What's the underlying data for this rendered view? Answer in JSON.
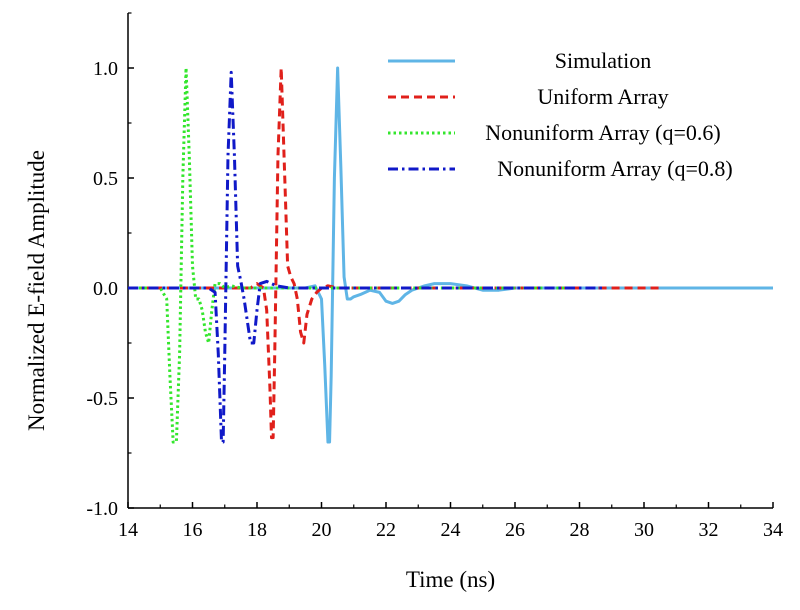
{
  "chart_data": {
    "type": "line",
    "title": "",
    "xlabel": "Time (ns)",
    "ylabel": "Normalized E-field Amplitude",
    "xlim": [
      14,
      34
    ],
    "ylim": [
      -1.0,
      1.25
    ],
    "xticks": [
      14,
      16,
      18,
      20,
      22,
      24,
      26,
      28,
      30,
      32,
      34
    ],
    "yticks": [
      -1.0,
      -0.5,
      0.0,
      0.5,
      1.0
    ],
    "xtick_labels": [
      "14",
      "16",
      "18",
      "20",
      "22",
      "24",
      "26",
      "28",
      "30",
      "32",
      "34"
    ],
    "ytick_labels": [
      "-1.0",
      "-0.5",
      "0.0",
      "0.5",
      "1.0"
    ],
    "grid": false,
    "legend_position": "top-right",
    "series": [
      {
        "name": "Simulation",
        "color": "#5fb5e6",
        "dash": "solid",
        "x": [
          14,
          19.5,
          19.8,
          20.0,
          20.1,
          20.2,
          20.25,
          20.3,
          20.4,
          20.5,
          20.6,
          20.7,
          20.8,
          20.9,
          21.0,
          21.2,
          21.5,
          21.8,
          22.0,
          22.2,
          22.4,
          22.6,
          22.8,
          23.0,
          23.2,
          23.5,
          24.0,
          24.5,
          25.0,
          25.5,
          26.0,
          34
        ],
        "y": [
          0,
          0,
          0.01,
          -0.05,
          -0.35,
          -0.7,
          -0.7,
          -0.4,
          0.5,
          1.0,
          0.55,
          0.05,
          -0.05,
          -0.05,
          -0.04,
          -0.03,
          -0.01,
          -0.02,
          -0.06,
          -0.07,
          -0.06,
          -0.03,
          -0.01,
          0.0,
          0.01,
          0.02,
          0.02,
          0.01,
          -0.01,
          -0.01,
          0,
          0
        ]
      },
      {
        "name": "Uniform Array",
        "color": "#e0201b",
        "dash": "dashed",
        "x": [
          14,
          17.8,
          18.0,
          18.2,
          18.3,
          18.4,
          18.45,
          18.5,
          18.55,
          18.65,
          18.75,
          18.85,
          18.95,
          19.05,
          19.15,
          19.25,
          19.35,
          19.45,
          19.55,
          19.7,
          19.85,
          20.0,
          20.2,
          20.5,
          21.0,
          22.0,
          24.0,
          26.0,
          28.0,
          30.6
        ],
        "y": [
          0,
          0,
          0.02,
          0.0,
          -0.1,
          -0.45,
          -0.68,
          -0.68,
          -0.3,
          0.6,
          1.0,
          0.55,
          0.1,
          0.05,
          0.02,
          -0.05,
          -0.2,
          -0.25,
          -0.12,
          -0.05,
          -0.02,
          0.0,
          0.01,
          0.0,
          0.0,
          0.0,
          0.0,
          0.0,
          0.0,
          0.0
        ]
      },
      {
        "name": "Nonuniform Array (q=0.6)",
        "color": "#33e62c",
        "dash": "dotted",
        "x": [
          14,
          15.0,
          15.2,
          15.3,
          15.4,
          15.5,
          15.6,
          15.7,
          15.8,
          15.9,
          16.0,
          16.1,
          16.2,
          16.3,
          16.4,
          16.5,
          16.6,
          16.7,
          16.85,
          17.0,
          17.2,
          17.5,
          18.0,
          19.0,
          20.0,
          22.0,
          24.0,
          26.0,
          27.8
        ],
        "y": [
          0,
          0,
          -0.05,
          -0.4,
          -0.7,
          -0.7,
          -0.3,
          0.5,
          1.0,
          0.6,
          0.1,
          -0.05,
          -0.05,
          -0.1,
          -0.2,
          -0.25,
          -0.1,
          0.02,
          0.02,
          0.0,
          0.01,
          0.0,
          0.0,
          0.0,
          0.0,
          0.0,
          0.0,
          0.0,
          0.0
        ]
      },
      {
        "name": "Nonuniform Array (q=0.8)",
        "color": "#1019c8",
        "dash": "dashdot",
        "x": [
          14,
          16.5,
          16.7,
          16.8,
          16.9,
          16.95,
          17.0,
          17.1,
          17.2,
          17.3,
          17.4,
          17.5,
          17.6,
          17.7,
          17.8,
          17.9,
          18.0,
          18.1,
          18.3,
          18.6,
          19.0,
          20.0,
          22.0,
          24.0,
          26.0,
          28.0,
          28.8
        ],
        "y": [
          0,
          0,
          -0.02,
          -0.3,
          -0.7,
          -0.7,
          -0.3,
          0.6,
          0.98,
          0.6,
          0.1,
          0.03,
          -0.05,
          -0.15,
          -0.25,
          -0.25,
          -0.1,
          0.02,
          0.03,
          0.01,
          0.0,
          0.0,
          0.0,
          0.0,
          0.0,
          0.0,
          0.0
        ]
      }
    ]
  }
}
